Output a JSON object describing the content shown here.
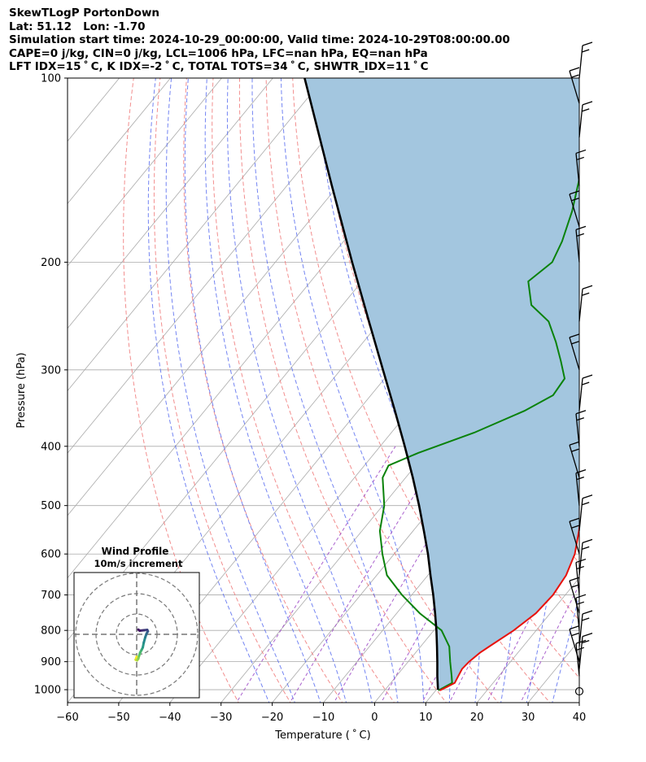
{
  "header": {
    "title": "SkewTLogP PortonDown",
    "location": "Lat: 51.12   Lon: -1.70",
    "times": "Simulation start time: 2024-10-29_00:00:00, Valid time: 2024-10-29T08:00:00.00",
    "convective": "CAPE=0 j/kg, CIN=0 j/kg, LCL=1006 hPa, LFC=nan hPa, EQ=nan hPa",
    "indices": "LFT IDX=15 ˚ C, K IDX=-2 ˚ C, TOTAL TOTS=34 ˚ C, SHWTR_IDX=11 ˚ C"
  },
  "chart_data": [
    {
      "type": "line",
      "subtype": "skew-T log-P diagram",
      "xlabel": "Temperature ( ˚ C)",
      "ylabel": "Pressure (hPa)",
      "xlim": [
        -60,
        40
      ],
      "ylim": [
        1050,
        100
      ],
      "y_scale": "log",
      "x_ticks": [
        "−60",
        "−50",
        "−40",
        "−30",
        "−20",
        "−10",
        "0",
        "10",
        "20",
        "30",
        "40"
      ],
      "y_ticks": [
        "100",
        "200",
        "300",
        "400",
        "500",
        "600",
        "700",
        "800",
        "900",
        "1000"
      ],
      "grid": true,
      "colors": {
        "temperature": "#e8120c",
        "dewpoint": "#0a820a",
        "parcel": "#000000",
        "shading": "#a3c6df",
        "dry_adiabats": "#f07a7a",
        "moist_adiabats": "#5b6ef0",
        "mixing_ratio": "#a04fc8",
        "isotherms": "#aaaaaa"
      },
      "series": [
        {
          "role": "temperature",
          "points": [
            [
              1003,
              10.8
            ],
            [
              990,
              11.6
            ],
            [
              975,
              12.5
            ],
            [
              950,
              12.1
            ],
            [
              925,
              11.7
            ],
            [
              900,
              11.9
            ],
            [
              870,
              12.6
            ],
            [
              850,
              13.4
            ],
            [
              800,
              15.6
            ],
            [
              750,
              17.2
            ],
            [
              700,
              17.6
            ],
            [
              650,
              17.0
            ],
            [
              600,
              15.3
            ],
            [
              550,
              12.4
            ],
            [
              500,
              8.9
            ],
            [
              450,
              5.3
            ],
            [
              400,
              1.7
            ],
            [
              350,
              -3.7
            ],
            [
              300,
              -9.4
            ],
            [
              270,
              -14.1
            ],
            [
              250,
              -19.1
            ],
            [
              230,
              -20.4
            ],
            [
              210,
              -22.0
            ],
            [
              190,
              -23.9
            ],
            [
              180,
              -25.4
            ],
            [
              160,
              -30.7
            ],
            [
              140,
              -35.0
            ],
            [
              125,
              -38.9
            ],
            [
              110,
              -43.6
            ],
            [
              100,
              -46.5
            ]
          ]
        },
        {
          "role": "dewpoint",
          "points": [
            [
              1003,
              10.5
            ],
            [
              975,
              12.0
            ],
            [
              950,
              10.8
            ],
            [
              900,
              8.2
            ],
            [
              850,
              5.6
            ],
            [
              800,
              1.5
            ],
            [
              750,
              -5.5
            ],
            [
              700,
              -11.9
            ],
            [
              650,
              -18.0
            ],
            [
              600,
              -22.3
            ],
            [
              550,
              -26.5
            ],
            [
              500,
              -29.7
            ],
            [
              450,
              -34.5
            ],
            [
              430,
              -35.3
            ],
            [
              410,
              -31.5
            ],
            [
              380,
              -23.8
            ],
            [
              350,
              -17.5
            ],
            [
              330,
              -14.4
            ],
            [
              310,
              -14.8
            ],
            [
              290,
              -18.4
            ],
            [
              270,
              -22.4
            ],
            [
              250,
              -27.1
            ],
            [
              235,
              -33.1
            ],
            [
              215,
              -37.5
            ],
            [
              200,
              -35.9
            ],
            [
              185,
              -37.3
            ],
            [
              165,
              -40.2
            ],
            [
              145,
              -44.2
            ],
            [
              130,
              -45.2
            ],
            [
              120,
              -46.0
            ],
            [
              110,
              -47.6
            ],
            [
              100,
              -50.6
            ]
          ]
        },
        {
          "role": "parcel",
          "points": [
            [
              1000,
              10.3
            ],
            [
              950,
              8.0
            ],
            [
              900,
              5.7
            ],
            [
              850,
              3.2
            ],
            [
              800,
              0.5
            ],
            [
              750,
              -2.5
            ],
            [
              700,
              -5.8
            ],
            [
              650,
              -9.5
            ],
            [
              600,
              -13.4
            ],
            [
              550,
              -17.9
            ],
            [
              500,
              -22.9
            ],
            [
              450,
              -28.6
            ],
            [
              400,
              -35.2
            ],
            [
              350,
              -42.8
            ],
            [
              300,
              -51.7
            ],
            [
              250,
              -62.2
            ],
            [
              200,
              -75.0
            ],
            [
              150,
              -91.2
            ],
            [
              100,
              -113.8
            ]
          ]
        }
      ],
      "wind_barbs": {
        "pressures": [
          1000,
          950,
          925,
          900,
          850,
          800,
          750,
          700,
          650,
          600,
          550,
          500,
          450,
          400,
          350,
          300,
          250,
          200,
          175,
          150,
          125,
          110,
          100
        ]
      }
    },
    {
      "type": "line",
      "subtype": "hodograph",
      "title": "Wind Profile",
      "subtitle": "10m/s increment",
      "ring_step": 10,
      "points": [
        [
          0.0,
          -11.0
        ],
        [
          -0.5,
          -12.5
        ],
        [
          0.2,
          -12.8
        ],
        [
          0.8,
          -12.0
        ],
        [
          1.2,
          -10.5
        ],
        [
          1.7,
          -9.0
        ],
        [
          2.5,
          -7.5
        ],
        [
          3.0,
          -6.5
        ],
        [
          3.5,
          -4.0
        ],
        [
          4.2,
          -1.5
        ],
        [
          4.8,
          0.2
        ],
        [
          5.5,
          1.5
        ],
        [
          5.2,
          2.2
        ],
        [
          3.5,
          2.0
        ],
        [
          1.5,
          1.8
        ],
        [
          0.8,
          2.3
        ]
      ]
    }
  ]
}
